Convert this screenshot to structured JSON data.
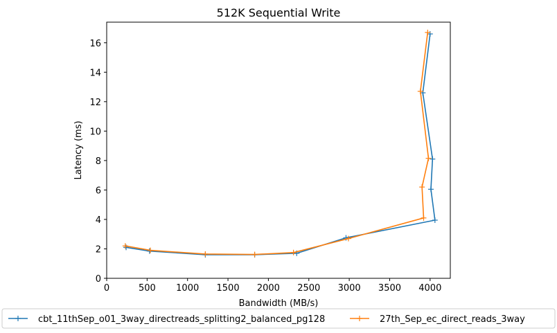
{
  "chart_data": {
    "type": "line",
    "title": "512K  Sequential Write",
    "xlabel": "Bandwidth (MB/s)",
    "ylabel": "Latency (ms)",
    "xlim": [
      0,
      4250
    ],
    "ylim": [
      0,
      17.4
    ],
    "xticks": [
      0,
      500,
      1000,
      1500,
      2000,
      2500,
      3000,
      3500,
      4000
    ],
    "yticks": [
      0,
      2,
      4,
      6,
      8,
      10,
      12,
      14,
      16
    ],
    "grid": false,
    "legend_position": "bottom-center",
    "series": [
      {
        "name": "cbt_11thSep_o01_3way_directreads_splitting2_balanced_pg128",
        "color": "#1f77b4",
        "marker": "+",
        "x": [
          240,
          530,
          1220,
          1830,
          2350,
          2960,
          4060,
          4010,
          4030,
          3910,
          4000
        ],
        "y": [
          2.1,
          1.85,
          1.6,
          1.6,
          1.7,
          2.75,
          3.95,
          6.05,
          8.1,
          12.6,
          16.6
        ]
      },
      {
        "name": "27th_Sep_ec_direct_reads_3way",
        "color": "#ff7f0e",
        "marker": "+",
        "x": [
          230,
          540,
          1220,
          1830,
          2310,
          2990,
          3920,
          3900,
          3980,
          3880,
          3970
        ],
        "y": [
          2.2,
          1.9,
          1.65,
          1.62,
          1.75,
          2.7,
          4.1,
          6.2,
          8.15,
          12.7,
          16.7
        ]
      }
    ]
  }
}
